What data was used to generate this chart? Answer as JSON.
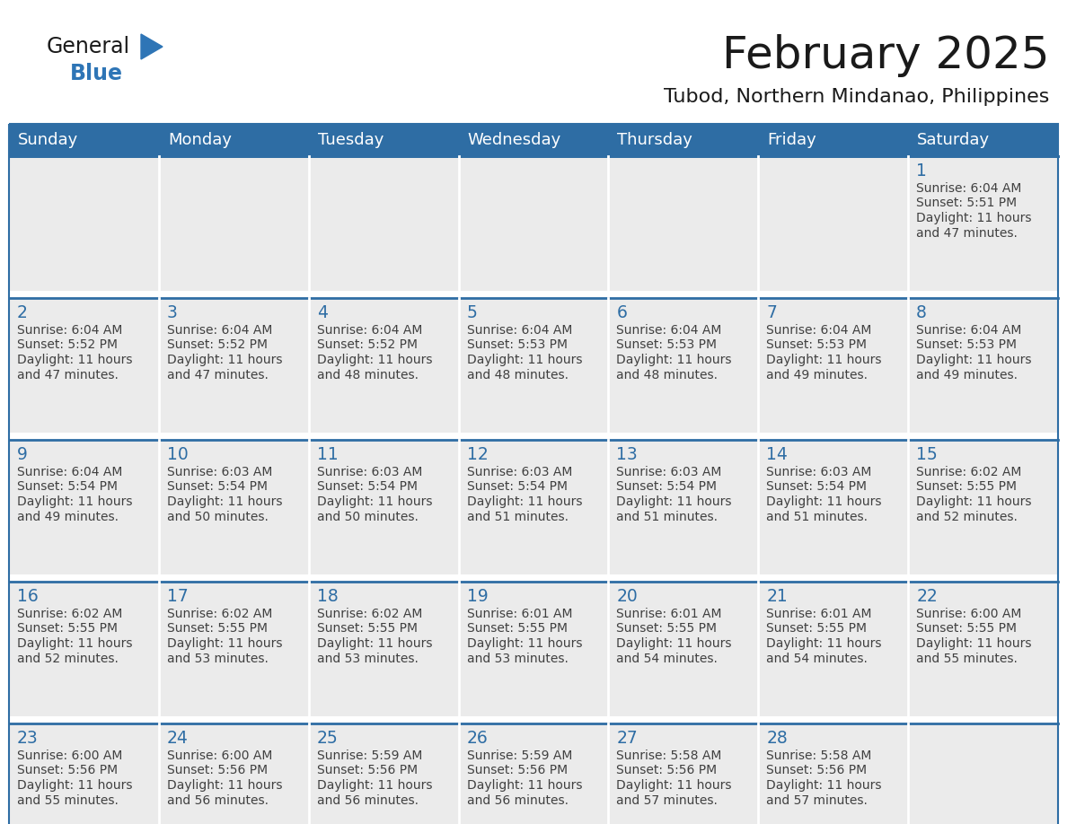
{
  "title": "February 2025",
  "subtitle": "Tubod, Northern Mindanao, Philippines",
  "header_bg": "#2E6DA4",
  "header_text": "#FFFFFF",
  "cell_bg": "#EBEBEB",
  "cell_bg_white": "#FFFFFF",
  "day_names": [
    "Sunday",
    "Monday",
    "Tuesday",
    "Wednesday",
    "Thursday",
    "Friday",
    "Saturday"
  ],
  "grid_line_color": "#2E6DA4",
  "day_number_color": "#2E6DA4",
  "info_text_color": "#404040",
  "logo_general_color": "#1a1a1a",
  "logo_blue_color": "#2E75B6",
  "calendar": [
    [
      null,
      null,
      null,
      null,
      null,
      null,
      1
    ],
    [
      2,
      3,
      4,
      5,
      6,
      7,
      8
    ],
    [
      9,
      10,
      11,
      12,
      13,
      14,
      15
    ],
    [
      16,
      17,
      18,
      19,
      20,
      21,
      22
    ],
    [
      23,
      24,
      25,
      26,
      27,
      28,
      null
    ]
  ],
  "sunrise": {
    "1": "6:04 AM",
    "2": "6:04 AM",
    "3": "6:04 AM",
    "4": "6:04 AM",
    "5": "6:04 AM",
    "6": "6:04 AM",
    "7": "6:04 AM",
    "8": "6:04 AM",
    "9": "6:04 AM",
    "10": "6:03 AM",
    "11": "6:03 AM",
    "12": "6:03 AM",
    "13": "6:03 AM",
    "14": "6:03 AM",
    "15": "6:02 AM",
    "16": "6:02 AM",
    "17": "6:02 AM",
    "18": "6:02 AM",
    "19": "6:01 AM",
    "20": "6:01 AM",
    "21": "6:01 AM",
    "22": "6:00 AM",
    "23": "6:00 AM",
    "24": "6:00 AM",
    "25": "5:59 AM",
    "26": "5:59 AM",
    "27": "5:58 AM",
    "28": "5:58 AM"
  },
  "sunset": {
    "1": "5:51 PM",
    "2": "5:52 PM",
    "3": "5:52 PM",
    "4": "5:52 PM",
    "5": "5:53 PM",
    "6": "5:53 PM",
    "7": "5:53 PM",
    "8": "5:53 PM",
    "9": "5:54 PM",
    "10": "5:54 PM",
    "11": "5:54 PM",
    "12": "5:54 PM",
    "13": "5:54 PM",
    "14": "5:54 PM",
    "15": "5:55 PM",
    "16": "5:55 PM",
    "17": "5:55 PM",
    "18": "5:55 PM",
    "19": "5:55 PM",
    "20": "5:55 PM",
    "21": "5:55 PM",
    "22": "5:55 PM",
    "23": "5:56 PM",
    "24": "5:56 PM",
    "25": "5:56 PM",
    "26": "5:56 PM",
    "27": "5:56 PM",
    "28": "5:56 PM"
  },
  "daylight_line3": {
    "1": "Daylight: 11 hours",
    "2": "Daylight: 11 hours",
    "3": "Daylight: 11 hours",
    "4": "Daylight: 11 hours",
    "5": "Daylight: 11 hours",
    "6": "Daylight: 11 hours",
    "7": "Daylight: 11 hours",
    "8": "Daylight: 11 hours",
    "9": "Daylight: 11 hours",
    "10": "Daylight: 11 hours",
    "11": "Daylight: 11 hours",
    "12": "Daylight: 11 hours",
    "13": "Daylight: 11 hours",
    "14": "Daylight: 11 hours",
    "15": "Daylight: 11 hours",
    "16": "Daylight: 11 hours",
    "17": "Daylight: 11 hours",
    "18": "Daylight: 11 hours",
    "19": "Daylight: 11 hours",
    "20": "Daylight: 11 hours",
    "21": "Daylight: 11 hours",
    "22": "Daylight: 11 hours",
    "23": "Daylight: 11 hours",
    "24": "Daylight: 11 hours",
    "25": "Daylight: 11 hours",
    "26": "Daylight: 11 hours",
    "27": "Daylight: 11 hours",
    "28": "Daylight: 11 hours"
  },
  "daylight_line4": {
    "1": "and 47 minutes.",
    "2": "and 47 minutes.",
    "3": "and 47 minutes.",
    "4": "and 48 minutes.",
    "5": "and 48 minutes.",
    "6": "and 48 minutes.",
    "7": "and 49 minutes.",
    "8": "and 49 minutes.",
    "9": "and 49 minutes.",
    "10": "and 50 minutes.",
    "11": "and 50 minutes.",
    "12": "and 51 minutes.",
    "13": "and 51 minutes.",
    "14": "and 51 minutes.",
    "15": "and 52 minutes.",
    "16": "and 52 minutes.",
    "17": "and 53 minutes.",
    "18": "and 53 minutes.",
    "19": "and 53 minutes.",
    "20": "and 54 minutes.",
    "21": "and 54 minutes.",
    "22": "and 55 minutes.",
    "23": "and 55 minutes.",
    "24": "and 56 minutes.",
    "25": "and 56 minutes.",
    "26": "and 56 minutes.",
    "27": "and 57 minutes.",
    "28": "and 57 minutes."
  }
}
